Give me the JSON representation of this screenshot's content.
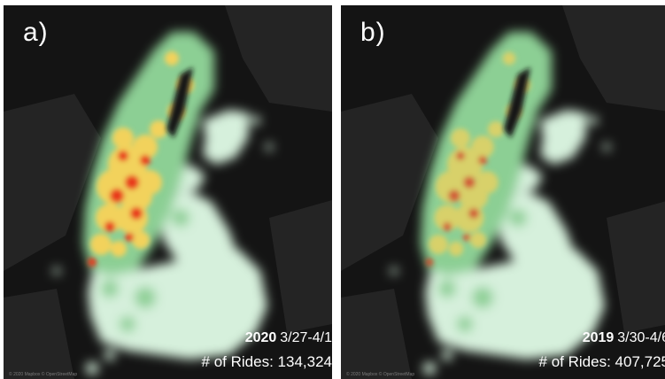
{
  "panels": [
    {
      "id": "a",
      "label": "a)",
      "year": "2020",
      "dates": "3/27-4/1",
      "rides_label": "# of Rides: ",
      "rides_value": "134,324",
      "attribution": "© 2020 Mapbox © OpenStreetMap",
      "hotspot_intensity": 1.0
    },
    {
      "id": "b",
      "label": "b)",
      "year": "2019",
      "dates": "3/30-4/6",
      "rides_label": "# of Rides: ",
      "rides_value": "407,725",
      "attribution": "© 2020 Mapbox © OpenStreetMap",
      "hotspot_intensity": 0.7
    }
  ],
  "colors": {
    "background": "#141414",
    "land": "#262626",
    "density_low": "#d6f0dc",
    "density_mid": "#8ccf94",
    "density_high": "#f2d25c",
    "density_peak": "#e83a1f"
  }
}
